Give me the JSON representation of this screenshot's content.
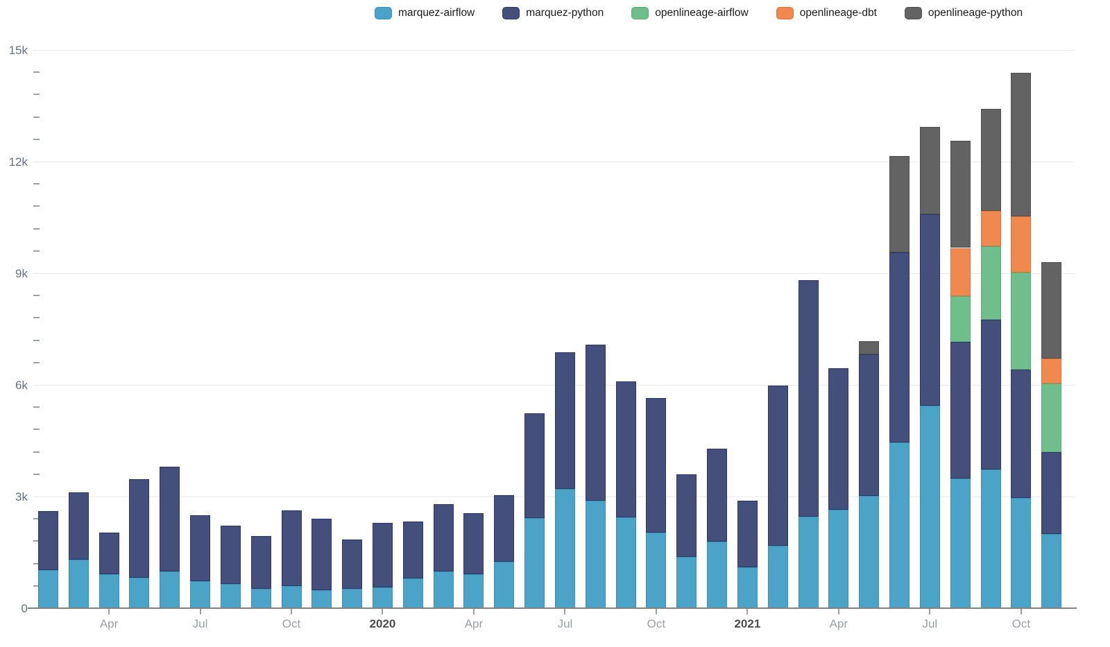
{
  "chart_data": {
    "type": "bar",
    "stacked": true,
    "title": "",
    "legend_position": "top",
    "grid": true,
    "months": [
      "Feb 2019",
      "Mar 2019",
      "Apr 2019",
      "May 2019",
      "Jun 2019",
      "Jul 2019",
      "Aug 2019",
      "Sep 2019",
      "Oct 2019",
      "Nov 2019",
      "Dec 2019",
      "Jan 2020",
      "Feb 2020",
      "Mar 2020",
      "Apr 2020",
      "May 2020",
      "Jun 2020",
      "Jul 2020",
      "Aug 2020",
      "Sep 2020",
      "Oct 2020",
      "Nov 2020",
      "Dec 2020",
      "Jan 2021",
      "Feb 2021",
      "Mar 2021",
      "Apr 2021",
      "May 2021",
      "Jun 2021",
      "Jul 2021",
      "Aug 2021",
      "Sep 2021",
      "Oct 2021",
      "Nov 2021"
    ],
    "series": [
      {
        "name": "marquez-airflow",
        "color": "#4BA3C7",
        "border": "#3A8FB2",
        "values": [
          1030,
          1300,
          910,
          820,
          990,
          730,
          650,
          520,
          600,
          480,
          520,
          560,
          800,
          990,
          910,
          1250,
          2420,
          3200,
          2890,
          2440,
          2030,
          1380,
          1790,
          1100,
          1680,
          2460,
          2650,
          3020,
          4450,
          5440,
          3480,
          3720,
          2960,
          1990
        ]
      },
      {
        "name": "marquez-python",
        "color": "#454F7C",
        "border": "#2B3765",
        "values": [
          1580,
          1810,
          1120,
          2650,
          2810,
          1770,
          1570,
          1420,
          2030,
          1930,
          1320,
          1740,
          1530,
          1810,
          1640,
          1790,
          2820,
          3680,
          4190,
          3650,
          3610,
          2220,
          2490,
          1790,
          4300,
          6350,
          3800,
          3800,
          5100,
          5140,
          3670,
          4040,
          3450,
          2200
        ]
      },
      {
        "name": "openlineage-airflow",
        "color": "#71BE8D",
        "border": "#5BAA78",
        "values": [
          0,
          0,
          0,
          0,
          0,
          0,
          0,
          0,
          0,
          0,
          0,
          0,
          0,
          0,
          0,
          0,
          0,
          0,
          0,
          0,
          0,
          0,
          0,
          0,
          0,
          0,
          0,
          0,
          0,
          0,
          1230,
          1960,
          2610,
          1840
        ]
      },
      {
        "name": "openlineage-dbt",
        "color": "#EF8950",
        "border": "#D8743C",
        "values": [
          0,
          0,
          0,
          0,
          0,
          0,
          0,
          0,
          0,
          0,
          0,
          0,
          0,
          0,
          0,
          0,
          0,
          0,
          0,
          0,
          0,
          0,
          0,
          0,
          0,
          0,
          0,
          0,
          0,
          0,
          1300,
          950,
          1510,
          670
        ]
      },
      {
        "name": "openlineage-python",
        "color": "#636363",
        "border": "#4F4F4F",
        "values": [
          0,
          0,
          0,
          0,
          0,
          0,
          0,
          0,
          0,
          0,
          0,
          0,
          0,
          0,
          0,
          0,
          0,
          0,
          0,
          0,
          0,
          0,
          0,
          0,
          0,
          0,
          0,
          350,
          2590,
          2350,
          2870,
          2740,
          3860,
          2590
        ]
      }
    ],
    "y_axis": {
      "min": 0,
      "max": 15000,
      "minor_step": 600,
      "major_ticks": [
        {
          "value": 0,
          "label": "0"
        },
        {
          "value": 3000,
          "label": "3k"
        },
        {
          "value": 6000,
          "label": "6k"
        },
        {
          "value": 9000,
          "label": "9k"
        },
        {
          "value": 12000,
          "label": "12k"
        },
        {
          "value": 15000,
          "label": "15k"
        }
      ]
    },
    "x_axis": {
      "ticks": [
        {
          "index": 2,
          "label": "Apr",
          "bold": false
        },
        {
          "index": 5,
          "label": "Jul",
          "bold": false
        },
        {
          "index": 8,
          "label": "Oct",
          "bold": false
        },
        {
          "index": 11,
          "label": "2020",
          "bold": true
        },
        {
          "index": 14,
          "label": "Apr",
          "bold": false
        },
        {
          "index": 17,
          "label": "Jul",
          "bold": false
        },
        {
          "index": 20,
          "label": "Oct",
          "bold": false
        },
        {
          "index": 23,
          "label": "2021",
          "bold": true
        },
        {
          "index": 26,
          "label": "Apr",
          "bold": false
        },
        {
          "index": 29,
          "label": "Jul",
          "bold": false
        },
        {
          "index": 32,
          "label": "Oct",
          "bold": false
        }
      ]
    }
  },
  "colors": {
    "background": "#FFFFFF",
    "gridline": "#E7EAF3",
    "baseline": "#828282",
    "tick": "#9AA0A6",
    "y_label": "#667080",
    "x_label": "#9AA0A6",
    "year_label": "#4D4D4D",
    "legend_text": "#1A1A1A"
  }
}
